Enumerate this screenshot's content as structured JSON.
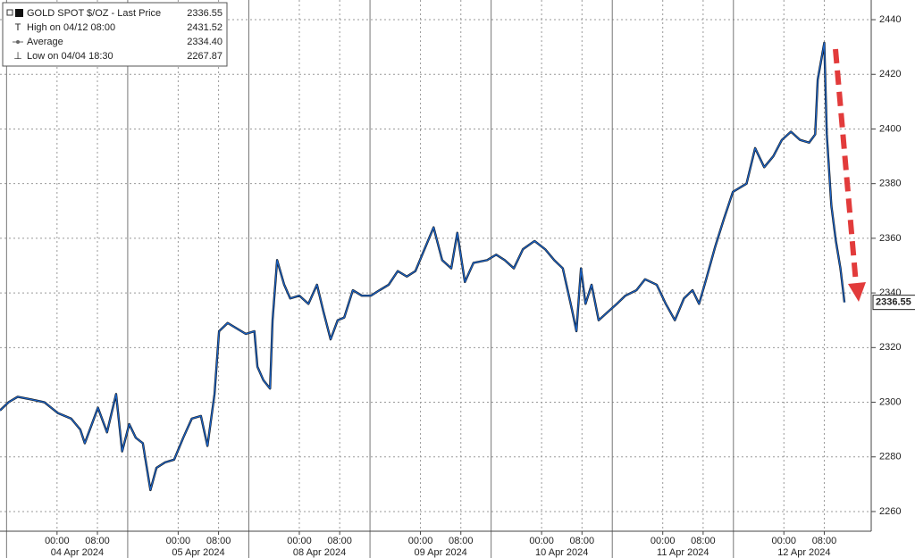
{
  "chart_data": {
    "type": "line",
    "series": [
      {
        "name": "GOLD SPOT $/OZ - Last Price",
        "color": "#1c64c8",
        "x": [
          -11.3,
          -9.6,
          -7.8,
          -5.1,
          -2.5,
          0.2,
          2.8,
          4.6,
          5.5,
          7.3,
          8.1,
          9.9,
          11.7,
          12.9,
          14.3,
          15.6,
          17.0,
          18.5,
          19.7,
          21.4,
          23.2,
          25.0,
          26.7,
          28.5,
          29.8,
          31.2,
          32.1,
          33.8,
          35.6,
          37.4,
          39.1,
          39.7,
          40.9,
          42.2,
          42.7,
          43.6,
          45.0,
          46.2,
          48.0,
          49.8,
          51.5,
          52.8,
          54.2,
          55.6,
          56.9,
          58.6,
          60.4,
          62.2,
          63.9,
          65.7,
          67.5,
          69.3,
          71.0,
          72.8,
          74.6,
          76.3,
          78.1,
          79.3,
          80.8,
          82.5,
          85.2,
          87.0,
          88.7,
          90.5,
          92.3,
          94.6,
          96.7,
          98.5,
          100.2,
          102.0,
          102.9,
          103.8,
          104.7,
          105.9,
          107.3,
          109.1,
          110.9,
          112.6,
          114.8,
          116.5,
          118.8,
          120.6,
          122.4,
          124.2,
          125.9,
          127.2,
          128.6,
          130.4,
          132.1,
          133.9,
          136.6,
          138.3,
          140.1,
          141.9,
          143.6,
          145.4,
          147.2,
          149.0,
          150.2,
          150.7,
          152.0,
          152.5,
          153.4,
          154.3,
          155.2,
          156.0
        ],
        "values": [
          2297,
          2300,
          2302,
          2301,
          2300,
          2296,
          2294,
          2290,
          2285,
          2294,
          2298,
          2289,
          2303,
          2282,
          2292,
          2287,
          2285,
          2267.87,
          2276,
          2278,
          2279,
          2287,
          2294,
          2295,
          2284,
          2303,
          2326,
          2329,
          2327,
          2325,
          2326,
          2313,
          2308,
          2305,
          2330,
          2352,
          2343,
          2338,
          2339,
          2336,
          2343,
          2333,
          2323,
          2330,
          2331,
          2341,
          2339,
          2339,
          2341,
          2343,
          2348,
          2346,
          2348,
          2356,
          2364,
          2352,
          2349,
          2362,
          2344,
          2351,
          2352,
          2354,
          2352,
          2349,
          2356,
          2359,
          2356,
          2352,
          2349,
          2334,
          2326,
          2349,
          2336,
          2343,
          2330,
          2333,
          2336,
          2339,
          2341,
          2345,
          2343,
          2336,
          2330,
          2338,
          2341,
          2336,
          2345,
          2357,
          2367,
          2377,
          2380,
          2393,
          2386,
          2390,
          2396,
          2399,
          2396,
          2395,
          2398,
          2418,
          2431.52,
          2398,
          2372,
          2359,
          2349,
          2336.55
        ]
      }
    ],
    "last_price": 2336.55,
    "stats": {
      "labels": [
        "High on 04/12 08:00",
        "Average",
        "Low on 04/04 18:30"
      ],
      "values": [
        2431.52,
        2334.4,
        2267.87
      ],
      "value_labels": [
        "2431.52",
        "2334.40",
        "2267.87"
      ]
    },
    "xlim": [
      -11.3,
      161.3
    ],
    "ylim": [
      2252.8,
      2447.2
    ],
    "yticks": [
      2260,
      2280,
      2300,
      2320,
      2340,
      2360,
      2380,
      2400,
      2420,
      2440
    ],
    "xticks": [
      {
        "value": 0,
        "label": "00:00"
      },
      {
        "value": 8,
        "label": "08:00"
      },
      {
        "value": 24,
        "label": "00:00"
      },
      {
        "value": 32,
        "label": "08:00"
      },
      {
        "value": 48,
        "label": "00:00"
      },
      {
        "value": 56,
        "label": "08:00"
      },
      {
        "value": 72,
        "label": "00:00"
      },
      {
        "value": 80,
        "label": "08:00"
      },
      {
        "value": 96,
        "label": "00:00"
      },
      {
        "value": 104,
        "label": "08:00"
      },
      {
        "value": 120,
        "label": "00:00"
      },
      {
        "value": 128,
        "label": "08:00"
      },
      {
        "value": 144,
        "label": "00:00"
      },
      {
        "value": 152,
        "label": "08:00"
      }
    ],
    "date_ticks": [
      {
        "value": 4,
        "label": "04 Apr 2024"
      },
      {
        "value": 28,
        "label": "05 Apr 2024"
      },
      {
        "value": 52,
        "label": "08 Apr 2024"
      },
      {
        "value": 76,
        "label": "09 Apr 2024"
      },
      {
        "value": 100,
        "label": "10 Apr 2024"
      },
      {
        "value": 124,
        "label": "11 Apr 2024"
      },
      {
        "value": 148,
        "label": "12 Apr 2024"
      }
    ],
    "day_breaks": [
      -10,
      14,
      38,
      62,
      86,
      110,
      134
    ],
    "grid": true
  }
}
